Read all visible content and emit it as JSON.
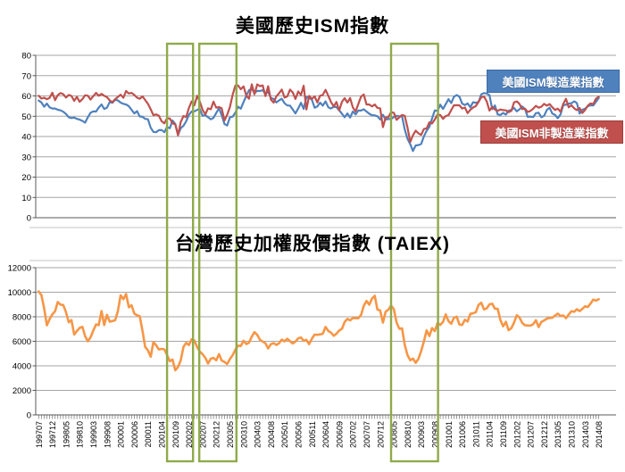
{
  "page": {
    "background": "#ffffff"
  },
  "highlights": {
    "color": "#8FAA4B",
    "ranges": [
      {
        "from_index": 47.0,
        "to_index": 56.5
      },
      {
        "from_index": 58.8,
        "to_index": 72.4
      },
      {
        "from_index": 129.0,
        "to_index": 146.2
      }
    ]
  },
  "chart_data": [
    {
      "type": "line",
      "title": "美國歷史ISM指數",
      "ylim": [
        0,
        80
      ],
      "y_ticks": [
        80,
        70,
        60,
        50,
        40,
        30,
        20,
        10,
        0
      ],
      "grid": true,
      "legend_position": "right-inside",
      "x_tick_labels": [
        "199707",
        "199712",
        "199805",
        "199810",
        "199903",
        "199908",
        "200001",
        "200006",
        "200011",
        "200104",
        "200109",
        "200202",
        "200207",
        "200212",
        "200305",
        "200310",
        "200403",
        "200408",
        "200501",
        "200506",
        "200511",
        "200604",
        "200609",
        "200702",
        "200707",
        "200712",
        "200805",
        "200810",
        "200903",
        "200908",
        "201001",
        "201006",
        "201011",
        "201104",
        "201109",
        "201202",
        "201207",
        "201212",
        "201305",
        "201310",
        "201403",
        "201408"
      ],
      "x_start": "199707",
      "x_end": "201408",
      "x_frequency": "monthly",
      "series": [
        {
          "name": "美國ISM製造業指數",
          "color": "#4F81BD",
          "values": [
            57.7,
            56.8,
            54.7,
            56.2,
            54.4,
            53.8,
            53.8,
            53.2,
            52.9,
            52.2,
            51.1,
            49.5,
            49.1,
            49.3,
            48.7,
            48.3,
            47.7,
            46.8,
            49.5,
            51.7,
            52.4,
            52.3,
            54.3,
            55.8,
            53.6,
            54.2,
            57.0,
            56.6,
            58.1,
            57.8,
            56.7,
            56.1,
            55.8,
            54.9,
            53.2,
            51.4,
            52.5,
            49.9,
            49.7,
            48.7,
            48.5,
            44.3,
            42.3,
            42.1,
            43.1,
            43.2,
            42.1,
            44.7,
            44.1,
            47.9,
            46.2,
            40.8,
            44.1,
            45.3,
            47.5,
            50.7,
            52.4,
            52.4,
            53.1,
            53.6,
            50.2,
            50.5,
            49.5,
            48.5,
            49.2,
            51.6,
            53.9,
            50.5,
            46.2,
            45.4,
            49.4,
            49.8,
            51.8,
            54.7,
            53.7,
            57.0,
            60.1,
            62.8,
            63.6,
            61.4,
            62.5,
            62.4,
            62.8,
            61.1,
            62.0,
            59.0,
            58.5,
            56.8,
            57.8,
            58.6,
            56.4,
            55.3,
            55.2,
            53.3,
            51.4,
            53.8,
            56.6,
            53.6,
            59.4,
            59.1,
            58.1,
            54.2,
            54.8,
            56.7,
            55.2,
            57.3,
            54.4,
            53.8,
            54.7,
            54.5,
            52.9,
            51.2,
            49.5,
            51.4,
            49.3,
            52.3,
            50.9,
            52.8,
            52.8,
            53.4,
            52.3,
            51.2,
            50.5,
            50.4,
            50.0,
            48.4,
            50.7,
            48.3,
            48.6,
            48.6,
            49.6,
            50.2,
            50.0,
            49.9,
            43.5,
            38.9,
            36.2,
            32.9,
            35.6,
            35.8,
            36.3,
            40.1,
            42.8,
            44.8,
            48.9,
            52.9,
            52.6,
            55.7,
            53.6,
            55.9,
            58.4,
            56.5,
            59.6,
            60.4,
            59.7,
            56.2,
            55.5,
            56.3,
            54.4,
            56.9,
            56.6,
            57.0,
            60.8,
            61.4,
            61.2,
            60.4,
            53.5,
            55.3,
            50.9,
            50.6,
            51.6,
            50.8,
            52.7,
            53.1,
            54.1,
            52.4,
            53.4,
            54.8,
            53.5,
            49.7,
            49.8,
            49.6,
            51.5,
            51.7,
            49.5,
            50.2,
            53.1,
            54.2,
            51.3,
            50.7,
            49.0,
            50.9,
            55.4,
            55.7,
            56.2,
            56.4,
            57.3,
            56.5,
            51.3,
            53.2,
            53.7,
            54.9,
            55.4,
            55.3,
            57.1,
            59.0
          ]
        },
        {
          "name": "美國ISM非製造業指數",
          "color": "#C0504D",
          "values": [
            60.1,
            58.7,
            59.1,
            58.4,
            59.0,
            61.6,
            57.9,
            60.4,
            61.4,
            60.9,
            59.2,
            60.5,
            60.0,
            57.6,
            59.5,
            57.1,
            58.4,
            60.3,
            60.1,
            58.2,
            59.9,
            61.5,
            60.1,
            61.0,
            60.1,
            59.4,
            57.8,
            56.9,
            58.4,
            59.5,
            60.6,
            59.1,
            62.4,
            61.2,
            61.5,
            60.5,
            59.1,
            58.6,
            59.8,
            58.0,
            56.1,
            53.4,
            50.5,
            50.9,
            50.3,
            47.5,
            46.5,
            49.0,
            48.9,
            46.5,
            46.0,
            40.6,
            47.1,
            50.1,
            49.6,
            54.1,
            57.3,
            55.3,
            60.1,
            57.2,
            53.1,
            50.9,
            53.9,
            53.4,
            57.2,
            54.2,
            54.5,
            53.9,
            47.9,
            50.7,
            54.5,
            60.6,
            65.1,
            65.1,
            63.3,
            64.7,
            60.1,
            58.6,
            65.7,
            60.8,
            65.7,
            64.8,
            65.2,
            59.9,
            64.8,
            58.2,
            56.7,
            59.8,
            61.3,
            63.1,
            59.2,
            59.8,
            63.1,
            61.7,
            58.5,
            62.2,
            60.5,
            65.0,
            53.3,
            60.0,
            58.5,
            59.8,
            56.8,
            60.1,
            60.5,
            63.0,
            60.1,
            57.0,
            54.8,
            57.0,
            52.9,
            57.1,
            58.9,
            56.7,
            59.0,
            54.3,
            52.4,
            56.0,
            59.7,
            60.7,
            55.8,
            55.8,
            54.8,
            55.8,
            54.1,
            53.9,
            44.6,
            49.3,
            49.6,
            52.0,
            51.7,
            48.2,
            49.5,
            50.6,
            50.2,
            44.4,
            37.3,
            40.6,
            42.9,
            41.6,
            40.8,
            43.7,
            44.0,
            47.0,
            46.4,
            48.4,
            50.9,
            50.6,
            48.7,
            50.1,
            50.5,
            53.0,
            55.4,
            55.4,
            55.4,
            53.8,
            54.3,
            51.5,
            53.2,
            54.3,
            55.0,
            57.1,
            59.4,
            59.7,
            57.3,
            52.8,
            54.6,
            53.3,
            52.7,
            53.3,
            53.0,
            52.9,
            52.0,
            52.6,
            56.8,
            57.3,
            56.0,
            53.5,
            53.7,
            52.1,
            52.6,
            53.7,
            55.1,
            54.2,
            54.7,
            56.1,
            55.2,
            56.0,
            54.4,
            53.1,
            53.7,
            52.2,
            56.0,
            58.6,
            54.4,
            55.4,
            53.9,
            53.0,
            54.0,
            51.6,
            53.1,
            55.2,
            56.3,
            56.0,
            58.7,
            59.6
          ]
        }
      ]
    },
    {
      "type": "line",
      "title": "台灣歷史加權股價指數 (TAIEX)",
      "ylim": [
        0,
        12000
      ],
      "y_ticks": [
        12000,
        10000,
        8000,
        6000,
        4000,
        2000,
        0
      ],
      "grid": true,
      "x_tick_labels": [
        "199707",
        "199712",
        "199805",
        "199810",
        "199903",
        "199908",
        "200001",
        "200006",
        "200011",
        "200104",
        "200109",
        "200202",
        "200207",
        "200212",
        "200305",
        "200310",
        "200403",
        "200408",
        "200501",
        "200506",
        "200511",
        "200604",
        "200609",
        "200702",
        "200707",
        "200712",
        "200805",
        "200810",
        "200903",
        "200908",
        "201001",
        "201006",
        "201011",
        "201104",
        "201109",
        "201202",
        "201207",
        "201212",
        "201305",
        "201310",
        "201403",
        "201408"
      ],
      "x_start": "199707",
      "x_end": "201408",
      "x_frequency": "monthly",
      "series": [
        {
          "name": "TAIEX",
          "color": "#F79646",
          "values": [
            10066,
            9757,
            8708,
            7300,
            7797,
            8187,
            8448,
            9202,
            8983,
            8962,
            8376,
            7548,
            7731,
            6550,
            6833,
            7089,
            7177,
            6418,
            5998,
            6318,
            6881,
            7371,
            7316,
            8467,
            7327,
            8157,
            7599,
            7654,
            7720,
            8449,
            9744,
            9435,
            9854,
            8777,
            8939,
            8265,
            8114,
            8043,
            6841,
            5544,
            5256,
            4739,
            5936,
            5674,
            5328,
            5380,
            5335,
            4883,
            4380,
            4509,
            3636,
            3904,
            4442,
            5551,
            5872,
            5696,
            6167,
            6065,
            5530,
            5153,
            4944,
            4649,
            4191,
            4579,
            4646,
            4452,
            4951,
            4432,
            4321,
            4148,
            4555,
            4872,
            5318,
            5650,
            5611,
            6045,
            5772,
            5890,
            6375,
            6750,
            6522,
            6117,
            5977,
            5839,
            5420,
            5765,
            5845,
            5705,
            5844,
            6139,
            5994,
            6207,
            6005,
            5818,
            5975,
            6241,
            6312,
            6034,
            6118,
            5764,
            6203,
            6548,
            6532,
            6561,
            6614,
            7171,
            6847,
            6704,
            6454,
            6611,
            6883,
            7021,
            7568,
            7824,
            7699,
            7901,
            7884,
            7875,
            8145,
            8883,
            9287,
            8982,
            9476,
            9711,
            8586,
            8506,
            7521,
            8412,
            8573,
            8920,
            8619,
            7524,
            7024,
            7046,
            5719,
            4870,
            4460,
            4591,
            4248,
            4557,
            5210,
            5992,
            6890,
            6432,
            7077,
            6826,
            7509,
            7340,
            7583,
            8188,
            7640,
            7436,
            7920,
            8004,
            7374,
            7329,
            7760,
            7616,
            8237,
            8287,
            8372,
            8973,
            9145,
            8599,
            8683,
            9008,
            9062,
            8653,
            8644,
            7741,
            7225,
            7588,
            6904,
            7072,
            7517,
            8121,
            7933,
            7501,
            7301,
            7296,
            7270,
            7397,
            7715,
            7166,
            7580,
            7700,
            7850,
            7898,
            7919,
            8093,
            8255,
            8062,
            8108,
            7880,
            8173,
            8450,
            8407,
            8612,
            8463,
            8640,
            8849,
            8791,
            9076,
            9393,
            9316,
            9436
          ]
        }
      ]
    }
  ]
}
